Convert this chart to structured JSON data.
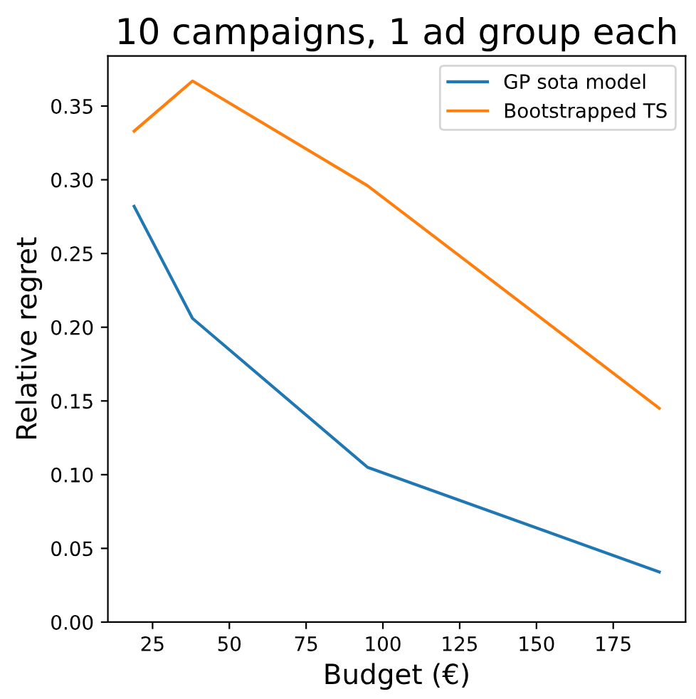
{
  "chart_data": {
    "type": "line",
    "title": "10 campaigns, 1 ad group each",
    "xlabel": "Budget (€)",
    "ylabel": "Relative regret",
    "x": [
      19,
      38,
      95,
      190
    ],
    "series": [
      {
        "name": "GP sota model",
        "color": "#1f77b4",
        "values": [
          0.282,
          0.206,
          0.105,
          0.034
        ]
      },
      {
        "name": "Bootstrapped TS",
        "color": "#ff7f0e",
        "values": [
          0.333,
          0.367,
          0.296,
          0.145
        ]
      }
    ],
    "xlim": [
      10.45,
      198.55
    ],
    "ylim": [
      0,
      0.384
    ],
    "xticks": [
      25,
      50,
      75,
      100,
      125,
      150,
      175
    ],
    "yticks": [
      {
        "value": 0,
        "label": "0.00"
      },
      {
        "value": 0.05,
        "label": "0.05"
      },
      {
        "value": 0.1,
        "label": "0.10"
      },
      {
        "value": 0.15,
        "label": "0.15"
      },
      {
        "value": 0.2,
        "label": "0.20"
      },
      {
        "value": 0.25,
        "label": "0.25"
      },
      {
        "value": 0.3,
        "label": "0.30"
      },
      {
        "value": 0.35,
        "label": "0.35"
      }
    ],
    "legend": "top right",
    "grid": false,
    "marker": "none",
    "line_style": "solid"
  }
}
